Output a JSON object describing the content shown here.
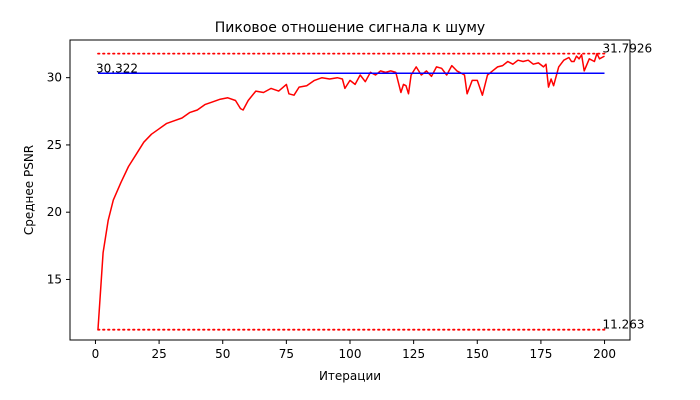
{
  "chart_data": {
    "type": "line",
    "title": "Пиковое отношение сигнала к шуму",
    "xlabel": "Итерации",
    "ylabel": "Среднее PSNR",
    "xlim": [
      -10,
      210
    ],
    "ylim": [
      10.5,
      32.8
    ],
    "xticks": [
      0,
      25,
      50,
      75,
      100,
      125,
      150,
      175,
      200
    ],
    "yticks": [
      15,
      20,
      25,
      30
    ],
    "grid": false,
    "legend": "none",
    "colors": {
      "psnr": "#ff0000",
      "mean": "#0000ff",
      "bounds": "#ff0000",
      "axes": "#000000"
    },
    "series": [
      {
        "style": "solid",
        "x": [
          1,
          3,
          5,
          7,
          10,
          13,
          16,
          19,
          22,
          25,
          28,
          31,
          34,
          37,
          40,
          43,
          46,
          49,
          52,
          55,
          57,
          58,
          60,
          63,
          66,
          69,
          72,
          75,
          76,
          78,
          80,
          83,
          86,
          89,
          92,
          95,
          97,
          98,
          100,
          102,
          104,
          106,
          108,
          110,
          112,
          114,
          116,
          118,
          120,
          121,
          122,
          123,
          124,
          126,
          128,
          130,
          132,
          134,
          136,
          138,
          140,
          142,
          144,
          145,
          146,
          148,
          150,
          152,
          154,
          156,
          158,
          160,
          162,
          164,
          166,
          168,
          170,
          172,
          174,
          176,
          177,
          178,
          179,
          180,
          182,
          184,
          186,
          187,
          188,
          189,
          190,
          191,
          192,
          194,
          196,
          197,
          198,
          200
        ],
        "y": [
          11.3,
          17,
          19.4,
          20.9,
          22.2,
          23.4,
          24.3,
          25.2,
          25.8,
          26.2,
          26.6,
          26.8,
          27,
          27.4,
          27.6,
          28,
          28.2,
          28.4,
          28.5,
          28.3,
          27.7,
          27.6,
          28.3,
          29,
          28.9,
          29.2,
          29,
          29.5,
          28.8,
          28.7,
          29.3,
          29.4,
          29.8,
          30,
          29.9,
          30,
          29.9,
          29.2,
          29.8,
          29.5,
          30.2,
          29.7,
          30.4,
          30.2,
          30.5,
          30.4,
          30.5,
          30.4,
          28.9,
          29.5,
          29.4,
          28.8,
          30.2,
          30.8,
          30.2,
          30.5,
          30.1,
          30.8,
          30.7,
          30.2,
          30.9,
          30.5,
          30.3,
          30.2,
          28.8,
          29.8,
          29.8,
          28.7,
          30.2,
          30.5,
          30.8,
          30.9,
          31.2,
          31,
          31.3,
          31.2,
          31.3,
          31,
          31.1,
          30.8,
          31,
          29.3,
          29.9,
          29.4,
          30.8,
          31.3,
          31.5,
          31.2,
          31.2,
          31.6,
          31.4,
          31.7,
          30.5,
          31.4,
          31.2,
          31.79,
          31.4,
          31.6
        ]
      },
      {
        "style": "solid",
        "x": [
          1,
          200
        ],
        "y": [
          30.322,
          30.322
        ]
      },
      {
        "style": "dotted",
        "x": [
          1,
          200
        ],
        "y": [
          31.7926,
          31.7926
        ]
      },
      {
        "style": "dotted",
        "x": [
          1,
          200
        ],
        "y": [
          11.263,
          11.263
        ]
      }
    ],
    "annotations": [
      {
        "text": "31.7926",
        "x": 200,
        "y": 31.7926
      },
      {
        "text": "30.322",
        "x": 1,
        "y": 30.322
      },
      {
        "text": "11.263",
        "x": 200,
        "y": 11.263
      }
    ]
  }
}
